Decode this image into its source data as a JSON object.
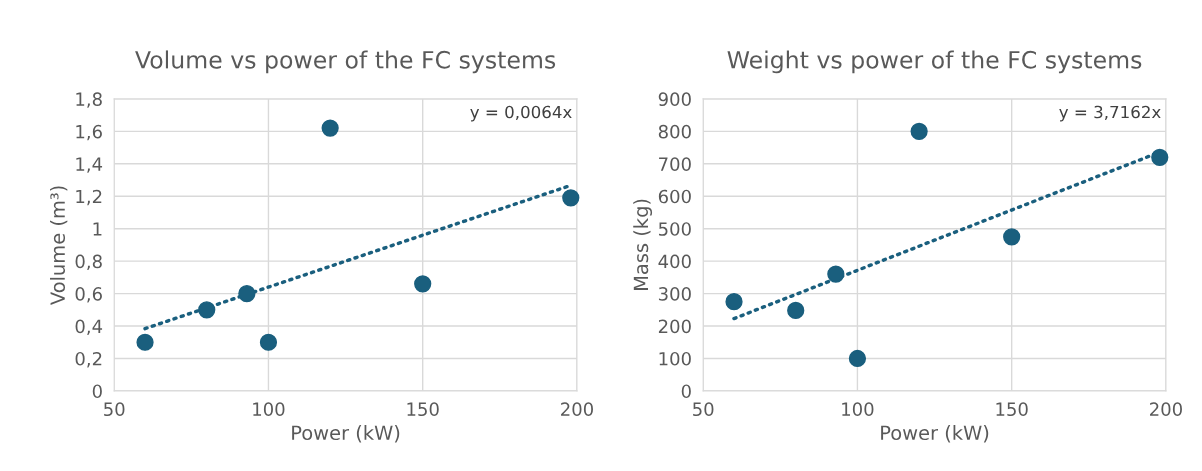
{
  "chart_data": [
    {
      "type": "scatter",
      "title": "Volume vs power of the FC systems",
      "xlabel": "Power (kW)",
      "ylabel": "Volume (m³)",
      "grid": true,
      "legend": false,
      "xlim": [
        50,
        200
      ],
      "xticks": [
        50,
        100,
        150,
        200
      ],
      "ylim": [
        0,
        1.8
      ],
      "yticks": [
        0,
        {
          "value": 0.2,
          "label": "0,2"
        },
        {
          "value": 0.4,
          "label": "0,4"
        },
        {
          "value": 0.6,
          "label": "0,6"
        },
        {
          "value": 0.8,
          "label": "0,8"
        },
        1,
        {
          "value": 1.2,
          "label": "1,2"
        },
        {
          "value": 1.4,
          "label": "1,4"
        },
        {
          "value": 1.6,
          "label": "1,6"
        },
        {
          "value": 1.8,
          "label": "1,8"
        }
      ],
      "annotations": [
        "y = 0,0064x"
      ],
      "series": [
        {
          "color": "#1a5f7e",
          "marker": "circle",
          "x": [
            60,
            80,
            93,
            100,
            120,
            150,
            198
          ],
          "values": [
            0.3,
            0.5,
            0.6,
            0.3,
            1.62,
            0.66,
            1.19
          ]
        },
        {
          "type": "line",
          "color": "#1a5f7e",
          "line_style": "dotted",
          "x": [
            60,
            198
          ],
          "values": [
            0.384,
            1.267
          ]
        }
      ]
    },
    {
      "type": "scatter",
      "title": "Weight vs power of the FC systems",
      "xlabel": "Power (kW)",
      "ylabel": "Mass (kg)",
      "grid": true,
      "legend": false,
      "xlim": [
        50,
        200
      ],
      "xticks": [
        50,
        100,
        150,
        200
      ],
      "ylim": [
        0,
        900
      ],
      "yticks": [
        0,
        100,
        200,
        300,
        400,
        500,
        600,
        700,
        800,
        900
      ],
      "annotations": [
        "y = 3,7162x"
      ],
      "series": [
        {
          "color": "#1a5f7e",
          "marker": "circle",
          "x": [
            60,
            80,
            93,
            100,
            120,
            150,
            198
          ],
          "values": [
            275,
            248,
            360,
            100,
            800,
            475,
            720
          ]
        },
        {
          "type": "line",
          "color": "#1a5f7e",
          "line_style": "dotted",
          "x": [
            60,
            198
          ],
          "values": [
            223,
            736
          ]
        }
      ]
    }
  ]
}
